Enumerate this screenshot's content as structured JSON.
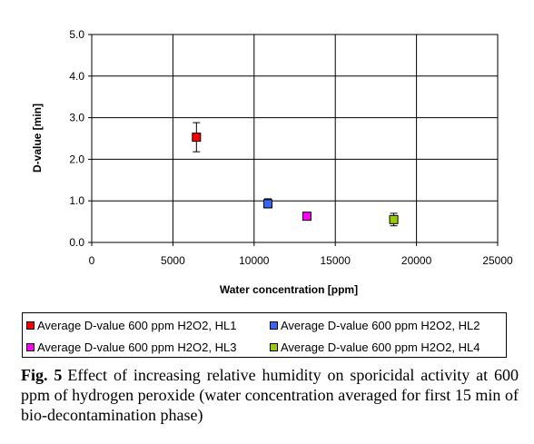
{
  "chart_data": {
    "type": "scatter",
    "xlabel": "Water concentration [ppm]",
    "ylabel": "D-value [min]",
    "xlim": [
      0,
      25000
    ],
    "ylim": [
      0,
      5.0
    ],
    "xticks": [
      0,
      5000,
      10000,
      15000,
      20000,
      25000
    ],
    "xtick_labels": [
      "0",
      "5000",
      "10000",
      "15000",
      "20000",
      "25000"
    ],
    "yticks": [
      0,
      1,
      2,
      3,
      4,
      5
    ],
    "ytick_labels": [
      "0.0",
      "1.0",
      "2.0",
      "3.0",
      "4.0",
      "5.0"
    ],
    "grid": "vertical and horizontal",
    "legend_position": "bottom",
    "series": [
      {
        "name": "Average D-value 600 ppm H2O2, HL1",
        "color": "#ff0000",
        "points": [
          {
            "x": 6450,
            "y": 2.53,
            "err_low": 0.35,
            "err_high": 0.35
          }
        ]
      },
      {
        "name": "Average D-value 600 ppm H2O2, HL2",
        "color": "#3366ff",
        "points": [
          {
            "x": 10850,
            "y": 0.93,
            "err_low": 0.1,
            "err_high": 0.12
          }
        ]
      },
      {
        "name": "Average D-value 600 ppm H2O2, HL3",
        "color": "#ff00ff",
        "points": [
          {
            "x": 13250,
            "y": 0.63,
            "err_low": 0.08,
            "err_high": 0.08
          }
        ]
      },
      {
        "name": "Average D-value 600 ppm H2O2, HL4",
        "color": "#99cc00",
        "points": [
          {
            "x": 18600,
            "y": 0.55,
            "err_low": 0.15,
            "err_high": 0.15
          }
        ]
      }
    ]
  },
  "caption": {
    "label": "Fig. 5",
    "text": "Effect of increasing relative humidity on sporicidal activity at 600 ppm of hydrogen peroxide (water concentration averaged for first 15 min of bio-decontamination phase)"
  }
}
